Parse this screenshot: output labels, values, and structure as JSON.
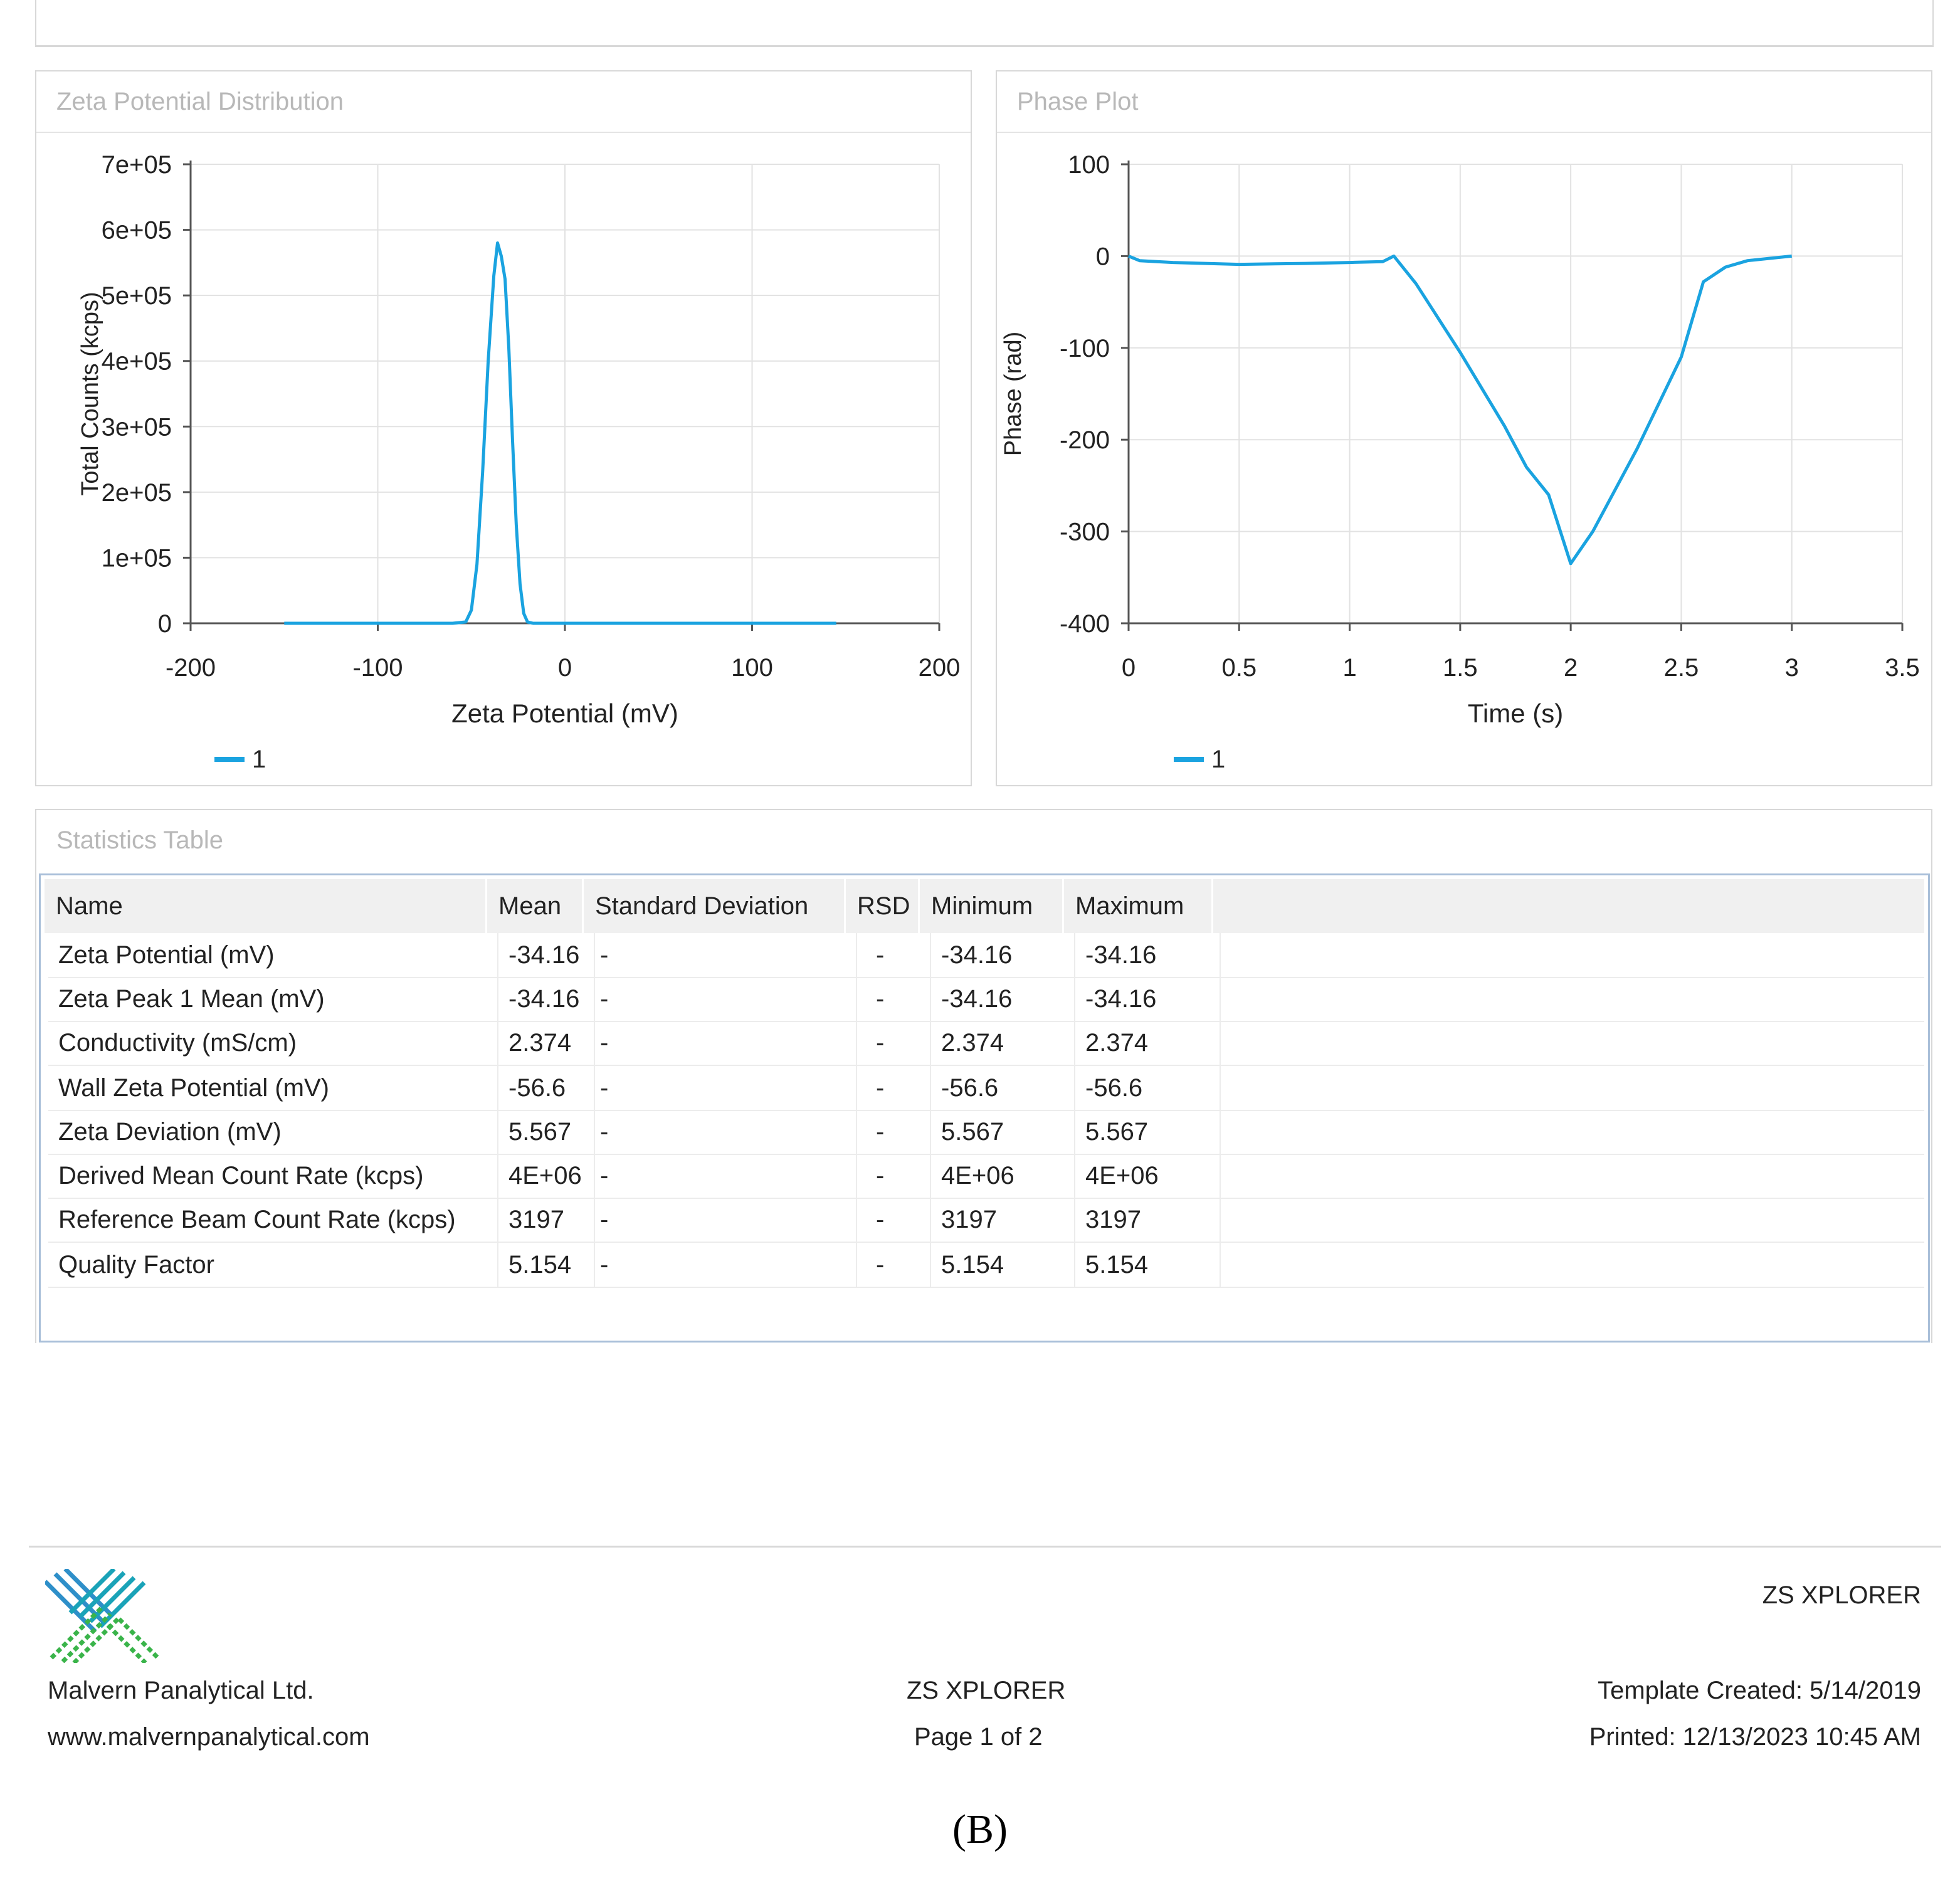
{
  "panels": {
    "zeta": {
      "title": "Zeta Potential Distribution"
    },
    "phase": {
      "title": "Phase Plot"
    },
    "stats": {
      "title": "Statistics Table"
    }
  },
  "chart_data": [
    {
      "type": "line",
      "title": "",
      "xlabel": "Zeta Potential (mV)",
      "ylabel": "Total Counts (kcps)",
      "xlim": [
        -200,
        200
      ],
      "ylim": [
        0,
        700000
      ],
      "xticks": [
        "-200",
        "-100",
        "0",
        "100",
        "200"
      ],
      "yticks": [
        "0",
        "1e+05",
        "2e+05",
        "3e+05",
        "4e+05",
        "5e+05",
        "6e+05",
        "7e+05"
      ],
      "xtick_values": [
        -200,
        -100,
        0,
        100,
        200
      ],
      "ytick_values": [
        0,
        100000,
        200000,
        300000,
        400000,
        500000,
        600000,
        700000
      ],
      "grid": true,
      "legend": "bottom-left",
      "color": "#1aa3e0",
      "series": [
        {
          "name": "1",
          "x": [
            -150,
            -60,
            -53,
            -50,
            -47,
            -44,
            -41,
            -38,
            -36,
            -34,
            -32,
            -30,
            -28,
            -26,
            -24,
            -22,
            -20,
            -17,
            0,
            145
          ],
          "y": [
            0,
            0,
            2000,
            20000,
            90000,
            230000,
            400000,
            530000,
            580000,
            560000,
            525000,
            420000,
            280000,
            150000,
            60000,
            15000,
            2000,
            0,
            0,
            0
          ]
        }
      ]
    },
    {
      "type": "line",
      "title": "",
      "xlabel": "Time (s)",
      "ylabel": "Phase (rad)",
      "xlim": [
        0,
        3.5
      ],
      "ylim": [
        -400,
        100
      ],
      "xticks": [
        "0",
        "0.5",
        "1",
        "1.5",
        "2",
        "2.5",
        "3",
        "3.5"
      ],
      "yticks": [
        "-400",
        "-300",
        "-200",
        "-100",
        "0",
        "100"
      ],
      "xtick_values": [
        0,
        0.5,
        1,
        1.5,
        2,
        2.5,
        3,
        3.5
      ],
      "ytick_values": [
        -400,
        -300,
        -200,
        -100,
        0,
        100
      ],
      "grid": true,
      "legend": "bottom-left",
      "color": "#1aa3e0",
      "series": [
        {
          "name": "1",
          "x": [
            0,
            0.05,
            0.2,
            0.5,
            0.8,
            1.0,
            1.15,
            1.2,
            1.3,
            1.5,
            1.7,
            1.8,
            1.9,
            2.0,
            2.1,
            2.3,
            2.5,
            2.6,
            2.7,
            2.8,
            3.0
          ],
          "y": [
            0,
            -5,
            -7,
            -9,
            -8,
            -7,
            -6,
            0,
            -30,
            -105,
            -185,
            -230,
            -260,
            -335,
            -300,
            -210,
            -110,
            -28,
            -12,
            -5,
            0
          ]
        }
      ]
    }
  ],
  "table": {
    "headers": [
      "Name",
      "Mean",
      "Standard Deviation",
      "RSD",
      "Minimum",
      "Maximum"
    ],
    "rows": [
      [
        "Zeta Potential (mV)",
        "-34.16",
        "-",
        "-",
        "-34.16",
        "-34.16"
      ],
      [
        "Zeta Peak 1 Mean (mV)",
        "-34.16",
        "-",
        "-",
        "-34.16",
        "-34.16"
      ],
      [
        "Conductivity (mS/cm)",
        "2.374",
        "-",
        "-",
        "2.374",
        "2.374"
      ],
      [
        "Wall Zeta Potential (mV)",
        "-56.6",
        "-",
        "-",
        "-56.6",
        "-56.6"
      ],
      [
        "Zeta Deviation (mV)",
        "5.567",
        "-",
        "-",
        "5.567",
        "5.567"
      ],
      [
        "Derived Mean Count Rate (kcps)",
        "4E+06",
        "-",
        "-",
        "4E+06",
        "4E+06"
      ],
      [
        "Reference Beam Count Rate (kcps)",
        "3197",
        "-",
        "-",
        "3197",
        "3197"
      ],
      [
        "Quality Factor",
        "5.154",
        "-",
        "-",
        "5.154",
        "5.154"
      ]
    ]
  },
  "footer": {
    "brand_top_right": "ZS XPLORER",
    "company": "Malvern Panalytical Ltd.",
    "website": "www.malvernpanalytical.com",
    "product": "ZS XPLORER",
    "page": "Page 1 of 2",
    "template_created": "Template Created: 5/14/2019",
    "printed": "Printed: 12/13/2023 10:45 AM",
    "logo_colors": [
      "#1aa3b8",
      "#2e8fc9",
      "#3ab44a"
    ]
  },
  "caption": "(B)"
}
